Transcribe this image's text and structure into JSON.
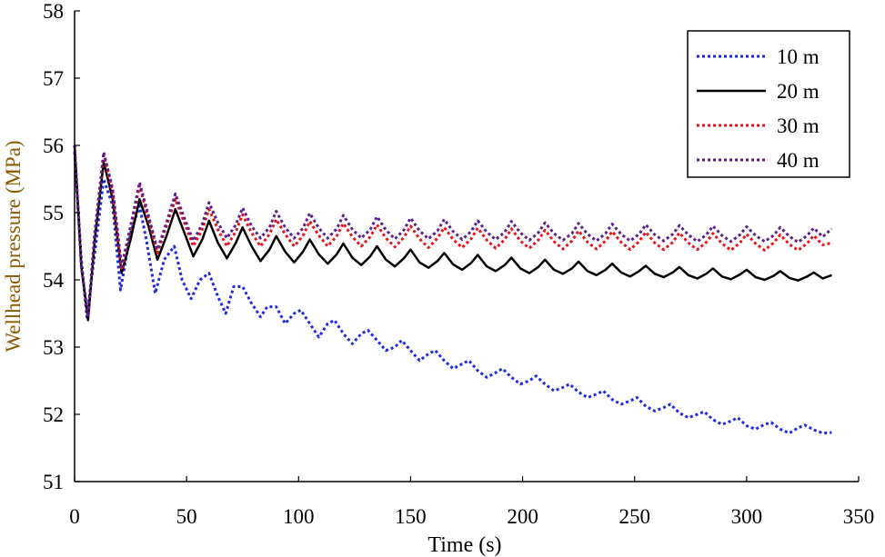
{
  "chart_data": {
    "type": "line",
    "title": "",
    "xlabel": "Time (s)",
    "ylabel": "Wellhead pressure (MPa)",
    "xlim": [
      0,
      350
    ],
    "ylim": [
      51,
      58
    ],
    "xticks": [
      0,
      50,
      100,
      150,
      200,
      250,
      300,
      350
    ],
    "yticks": [
      51,
      52,
      53,
      54,
      55,
      56,
      57,
      58
    ],
    "grid": false,
    "legend_position": "top-right",
    "series": [
      {
        "name": "10 m",
        "style": "dotted",
        "color": "#1f2bdc",
        "x": [
          0,
          3,
          5.5,
          9,
          13,
          17,
          20.5,
          25,
          29,
          32,
          36,
          40,
          44.5,
          48,
          52,
          56,
          60,
          64,
          67.5,
          71,
          75,
          79,
          83,
          86,
          90,
          94,
          98,
          101,
          105,
          109,
          113,
          116,
          120,
          124,
          128,
          131,
          135,
          139,
          143,
          146,
          150,
          154,
          158,
          161,
          165,
          169,
          173,
          176,
          180,
          184,
          188,
          191,
          195,
          199,
          203,
          206,
          210,
          214,
          218,
          221,
          225,
          229,
          233,
          236,
          240,
          244,
          248,
          251,
          255,
          259,
          263,
          266,
          270,
          274,
          278,
          281,
          285,
          289,
          293,
          296,
          300,
          304,
          308,
          311,
          315,
          319,
          323,
          326,
          330,
          334,
          338
        ],
        "values": [
          55.9,
          54.3,
          53.45,
          54.4,
          55.5,
          55.1,
          53.85,
          54.7,
          55.1,
          54.6,
          53.8,
          54.3,
          54.5,
          54.0,
          53.72,
          54.0,
          54.1,
          53.75,
          53.5,
          53.9,
          53.9,
          53.65,
          53.45,
          53.6,
          53.6,
          53.35,
          53.5,
          53.55,
          53.35,
          53.15,
          53.35,
          53.4,
          53.2,
          53.05,
          53.2,
          53.25,
          53.1,
          52.95,
          53.0,
          53.1,
          52.95,
          52.8,
          52.9,
          52.95,
          52.8,
          52.68,
          52.75,
          52.8,
          52.65,
          52.55,
          52.62,
          52.68,
          52.55,
          52.45,
          52.5,
          52.57,
          52.45,
          52.35,
          52.4,
          52.45,
          52.33,
          52.25,
          52.3,
          52.35,
          52.22,
          52.15,
          52.2,
          52.25,
          52.12,
          52.05,
          52.1,
          52.15,
          52.02,
          51.95,
          52.0,
          52.04,
          51.92,
          51.85,
          51.9,
          51.95,
          51.83,
          51.78,
          51.85,
          51.88,
          51.78,
          51.72,
          51.8,
          51.84,
          51.77,
          51.72,
          51.73
        ]
      },
      {
        "name": "20 m",
        "style": "solid",
        "color": "#000000",
        "x": [
          0,
          3,
          6,
          9,
          13,
          17,
          21,
          25,
          29,
          33,
          37,
          41,
          45,
          49,
          53,
          57,
          60,
          64,
          68,
          72,
          75,
          79,
          83,
          87,
          90,
          94,
          98,
          102,
          105,
          109,
          113,
          117,
          120,
          124,
          128,
          132,
          135,
          139,
          143,
          147,
          150,
          154,
          158,
          162,
          165,
          169,
          173,
          177,
          180,
          184,
          188,
          192,
          195,
          199,
          203,
          207,
          210,
          214,
          218,
          222,
          225,
          229,
          233,
          237,
          240,
          244,
          248,
          252,
          255,
          259,
          263,
          267,
          270,
          274,
          278,
          282,
          285,
          289,
          293,
          297,
          300,
          304,
          308,
          312,
          315,
          319,
          323,
          327,
          330,
          334,
          338
        ],
        "values": [
          56.0,
          54.2,
          53.4,
          54.6,
          55.75,
          55.2,
          54.1,
          54.6,
          55.2,
          54.8,
          54.3,
          54.65,
          55.05,
          54.7,
          54.35,
          54.6,
          54.88,
          54.55,
          54.32,
          54.55,
          54.78,
          54.5,
          54.28,
          54.45,
          54.65,
          54.42,
          54.26,
          54.42,
          54.6,
          54.38,
          54.24,
          54.38,
          54.54,
          54.33,
          54.22,
          54.35,
          54.5,
          54.3,
          54.2,
          54.32,
          54.45,
          54.26,
          54.18,
          54.28,
          54.4,
          54.23,
          54.15,
          54.25,
          54.37,
          54.2,
          54.13,
          54.22,
          54.33,
          54.17,
          54.1,
          54.19,
          54.3,
          54.15,
          54.09,
          54.17,
          54.27,
          54.13,
          54.07,
          54.15,
          54.24,
          54.11,
          54.05,
          54.13,
          54.21,
          54.09,
          54.04,
          54.11,
          54.19,
          54.07,
          54.02,
          54.09,
          54.17,
          54.05,
          54.01,
          54.08,
          54.15,
          54.04,
          54.0,
          54.06,
          54.13,
          54.03,
          53.99,
          54.05,
          54.11,
          54.02,
          54.07
        ]
      },
      {
        "name": "30 m",
        "style": "dotted",
        "color": "#e8141b",
        "x": [
          0,
          3,
          6,
          9,
          13,
          17,
          21,
          25,
          29,
          33,
          37,
          41,
          45,
          49,
          53,
          57,
          60,
          64,
          68,
          72,
          75,
          79,
          83,
          87,
          90,
          94,
          98,
          102,
          105,
          109,
          113,
          117,
          120,
          124,
          128,
          132,
          135,
          139,
          143,
          147,
          150,
          154,
          158,
          162,
          165,
          169,
          173,
          177,
          180,
          184,
          188,
          192,
          195,
          199,
          203,
          207,
          210,
          214,
          218,
          222,
          225,
          229,
          233,
          237,
          240,
          244,
          248,
          252,
          255,
          259,
          263,
          267,
          270,
          274,
          278,
          282,
          285,
          289,
          293,
          297,
          300,
          304,
          308,
          312,
          315,
          319,
          323,
          327,
          330,
          334,
          338
        ],
        "values": [
          56.0,
          54.2,
          53.45,
          54.7,
          55.85,
          55.3,
          54.15,
          54.75,
          55.4,
          54.9,
          54.4,
          54.8,
          55.2,
          54.85,
          54.5,
          54.75,
          55.05,
          54.75,
          54.5,
          54.72,
          54.97,
          54.7,
          54.5,
          54.68,
          54.9,
          54.68,
          54.5,
          54.66,
          54.87,
          54.66,
          54.5,
          54.65,
          54.84,
          54.64,
          54.5,
          54.64,
          54.82,
          54.62,
          54.49,
          54.63,
          54.8,
          54.61,
          54.48,
          54.62,
          54.78,
          54.6,
          54.48,
          54.61,
          54.77,
          54.59,
          54.47,
          54.6,
          54.76,
          54.58,
          54.47,
          54.59,
          54.74,
          54.57,
          54.46,
          54.58,
          54.73,
          54.56,
          54.46,
          54.58,
          54.72,
          54.56,
          54.45,
          54.57,
          54.71,
          54.55,
          54.45,
          54.56,
          54.7,
          54.55,
          54.45,
          54.56,
          54.69,
          54.54,
          54.44,
          54.55,
          54.68,
          54.54,
          54.44,
          54.55,
          54.67,
          54.53,
          54.44,
          54.54,
          54.66,
          54.52,
          54.55
        ]
      },
      {
        "name": "40 m",
        "style": "dotted",
        "color": "#5a1f8a",
        "x": [
          0,
          3,
          6,
          9,
          13,
          17,
          21,
          25,
          29,
          33,
          37,
          41,
          45,
          49,
          53,
          57,
          60,
          64,
          68,
          72,
          75,
          79,
          83,
          87,
          90,
          94,
          98,
          102,
          105,
          109,
          113,
          117,
          120,
          124,
          128,
          132,
          135,
          139,
          143,
          147,
          150,
          154,
          158,
          162,
          165,
          169,
          173,
          177,
          180,
          184,
          188,
          192,
          195,
          199,
          203,
          207,
          210,
          214,
          218,
          222,
          225,
          229,
          233,
          237,
          240,
          244,
          248,
          252,
          255,
          259,
          263,
          267,
          270,
          274,
          278,
          282,
          285,
          289,
          293,
          297,
          300,
          304,
          308,
          312,
          315,
          319,
          323,
          327,
          330,
          334,
          338
        ],
        "values": [
          56.0,
          54.2,
          53.45,
          54.7,
          55.9,
          55.35,
          54.2,
          54.8,
          55.45,
          54.95,
          54.45,
          54.85,
          55.28,
          54.92,
          54.58,
          54.83,
          55.15,
          54.85,
          54.62,
          54.82,
          55.07,
          54.8,
          54.62,
          54.78,
          55.02,
          54.78,
          54.62,
          54.77,
          54.99,
          54.77,
          54.62,
          54.76,
          54.96,
          54.75,
          54.62,
          54.75,
          54.94,
          54.74,
          54.61,
          54.74,
          54.92,
          54.73,
          54.61,
          54.73,
          54.9,
          54.72,
          54.6,
          54.72,
          54.88,
          54.71,
          54.6,
          54.71,
          54.87,
          54.7,
          54.59,
          54.7,
          54.85,
          54.69,
          54.59,
          54.69,
          54.84,
          54.68,
          54.58,
          54.69,
          54.83,
          54.68,
          54.58,
          54.68,
          54.82,
          54.67,
          54.58,
          54.68,
          54.81,
          54.67,
          54.57,
          54.67,
          54.8,
          54.66,
          54.57,
          54.67,
          54.79,
          54.66,
          54.57,
          54.66,
          54.78,
          54.65,
          54.56,
          54.66,
          54.77,
          54.64,
          54.76
        ]
      }
    ]
  }
}
